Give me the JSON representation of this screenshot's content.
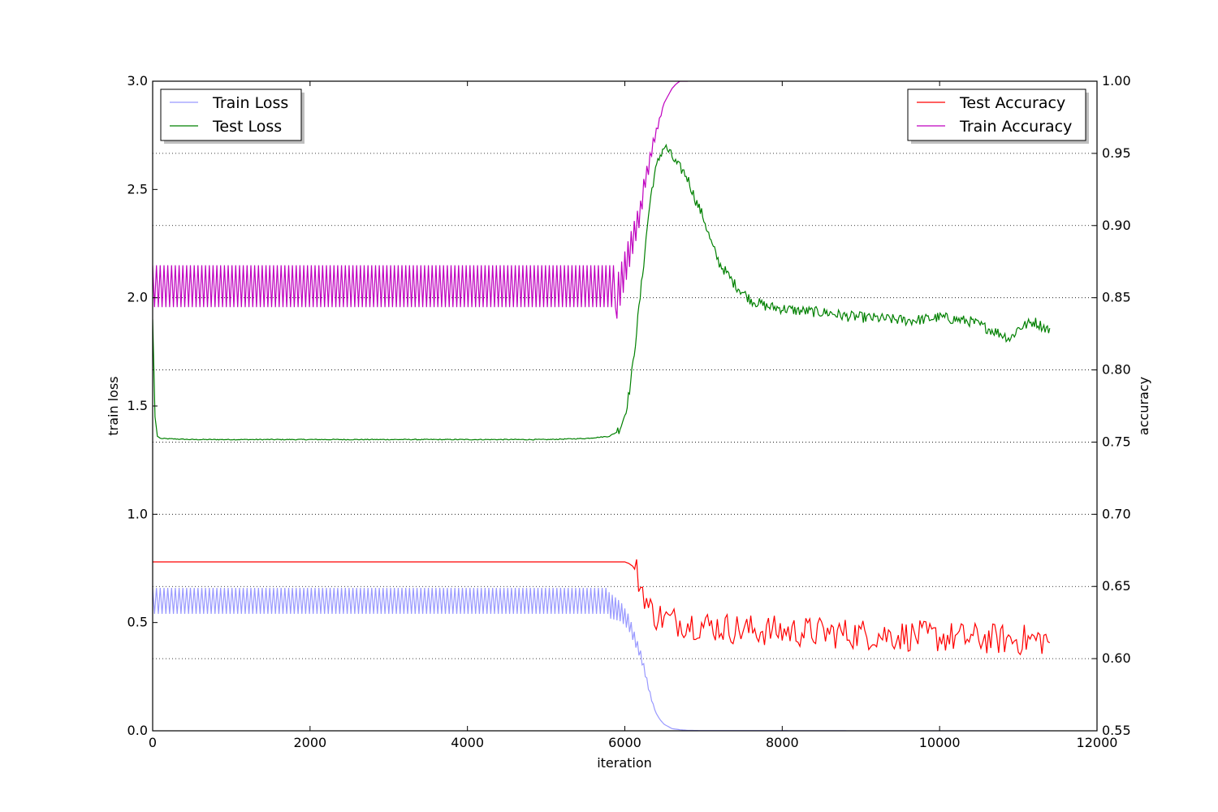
{
  "chart_data": {
    "type": "line",
    "title": "",
    "xlabel": "iteration",
    "ylabel_left": "train loss",
    "ylabel_right": "accuracy",
    "xlim": [
      0,
      12000
    ],
    "ylim_left": [
      0.0,
      3.0
    ],
    "ylim_right": [
      0.55,
      1.0
    ],
    "x_ticks": [
      0,
      2000,
      4000,
      6000,
      8000,
      10000,
      12000
    ],
    "x_tick_labels": [
      "0",
      "2000",
      "4000",
      "6000",
      "8000",
      "10000",
      "12000"
    ],
    "y_left_ticks": [
      0.0,
      0.5,
      1.0,
      1.5,
      2.0,
      2.5,
      3.0
    ],
    "y_left_tick_labels": [
      "0.0",
      "0.5",
      "1.0",
      "1.5",
      "2.0",
      "2.5",
      "3.0"
    ],
    "y_right_ticks": [
      0.55,
      0.6,
      0.65,
      0.7,
      0.75,
      0.8,
      0.85,
      0.9,
      0.95,
      1.0
    ],
    "y_right_tick_labels": [
      "0.55",
      "0.60",
      "0.65",
      "0.70",
      "0.75",
      "0.80",
      "0.85",
      "0.90",
      "0.95",
      "1.00"
    ],
    "grid": "horizontal dotted at right-axis ticks",
    "legend_left": {
      "placement": "top-left",
      "entries": [
        "Train Loss",
        "Test Loss"
      ]
    },
    "legend_right": {
      "placement": "top-right",
      "entries": [
        "Test Accuracy",
        "Train Accuracy"
      ]
    },
    "series": [
      {
        "name": "Train Loss",
        "axis": "left",
        "color": "#9999ff",
        "x": [
          0,
          500,
          1000,
          2000,
          3000,
          4000,
          5000,
          5600,
          5800,
          5950,
          6050,
          6150,
          6200,
          6250,
          6300,
          6350,
          6400,
          6450,
          6500,
          6550,
          6600,
          6700,
          6800,
          7000,
          8000,
          9000,
          10000,
          11000,
          11400
        ],
        "y": [
          0.6,
          0.6,
          0.6,
          0.6,
          0.6,
          0.6,
          0.6,
          0.6,
          0.58,
          0.55,
          0.5,
          0.4,
          0.35,
          0.28,
          0.2,
          0.13,
          0.08,
          0.05,
          0.03,
          0.02,
          0.01,
          0.005,
          0.002,
          0.001,
          0.001,
          0.0,
          0.0,
          0.0,
          0.0
        ],
        "oscillation_band": {
          "x_range": [
            0,
            5800
          ],
          "low": 0.54,
          "high": 0.66
        }
      },
      {
        "name": "Test Loss",
        "axis": "left",
        "color": "#008000",
        "x": [
          0,
          30,
          60,
          100,
          500,
          1000,
          2000,
          3000,
          4000,
          5000,
          5500,
          5800,
          5900,
          5950,
          6000,
          6050,
          6100,
          6150,
          6200,
          6250,
          6300,
          6350,
          6400,
          6450,
          6500,
          6550,
          6600,
          6650,
          6700,
          6750,
          6800,
          6850,
          6900,
          7000,
          7100,
          7200,
          7400,
          7600,
          7800,
          8000,
          8200,
          8400,
          8600,
          8800,
          9000,
          9200,
          9400,
          9600,
          9800,
          10000,
          10200,
          10400,
          10600,
          10800,
          10900,
          11000,
          11200,
          11400
        ],
        "y": [
          1.9,
          1.45,
          1.36,
          1.35,
          1.345,
          1.345,
          1.345,
          1.345,
          1.345,
          1.345,
          1.35,
          1.36,
          1.38,
          1.41,
          1.46,
          1.55,
          1.68,
          1.85,
          2.02,
          2.2,
          2.38,
          2.52,
          2.6,
          2.66,
          2.7,
          2.68,
          2.65,
          2.62,
          2.6,
          2.58,
          2.55,
          2.5,
          2.45,
          2.37,
          2.25,
          2.16,
          2.06,
          1.99,
          1.96,
          1.95,
          1.94,
          1.935,
          1.93,
          1.915,
          1.91,
          1.905,
          1.9,
          1.895,
          1.9,
          1.91,
          1.9,
          1.89,
          1.86,
          1.83,
          1.81,
          1.86,
          1.89,
          1.85
        ]
      },
      {
        "name": "Test Accuracy",
        "axis": "right",
        "color": "#ff0000",
        "x": [
          0,
          1000,
          2000,
          3000,
          4000,
          5000,
          5900,
          6000,
          6050,
          6100,
          6150,
          6200,
          6250,
          6300,
          6400,
          6500,
          6600,
          6800,
          7000,
          7200,
          7500,
          8000,
          8500,
          9000,
          9500,
          10000,
          10500,
          11000,
          11400
        ],
        "y": [
          0.667,
          0.667,
          0.667,
          0.667,
          0.667,
          0.667,
          0.667,
          0.667,
          0.666,
          0.664,
          0.66,
          0.65,
          0.645,
          0.635,
          0.63,
          0.628,
          0.626,
          0.625,
          0.623,
          0.622,
          0.62,
          0.619,
          0.618,
          0.617,
          0.616,
          0.615,
          0.614,
          0.613,
          0.613
        ],
        "noise_start": 6150
      },
      {
        "name": "Train Accuracy",
        "axis": "right",
        "color": "#bf00bf",
        "x": [
          0,
          1000,
          2000,
          3000,
          4000,
          5000,
          5900,
          5950,
          6000,
          6050,
          6100,
          6150,
          6200,
          6250,
          6300,
          6350,
          6400,
          6450,
          6500,
          6550,
          6600,
          6650,
          6700,
          6750,
          6800
        ],
        "y": [
          0.85,
          0.85,
          0.85,
          0.85,
          0.85,
          0.85,
          0.85,
          0.86,
          0.87,
          0.88,
          0.89,
          0.9,
          0.91,
          0.93,
          0.94,
          0.955,
          0.965,
          0.975,
          0.985,
          0.99,
          0.995,
          0.998,
          1.0,
          1.0,
          1.0
        ],
        "oscillation_band": {
          "x_range": [
            0,
            5900
          ],
          "low": 0.8435,
          "high": 0.8725
        }
      }
    ]
  }
}
